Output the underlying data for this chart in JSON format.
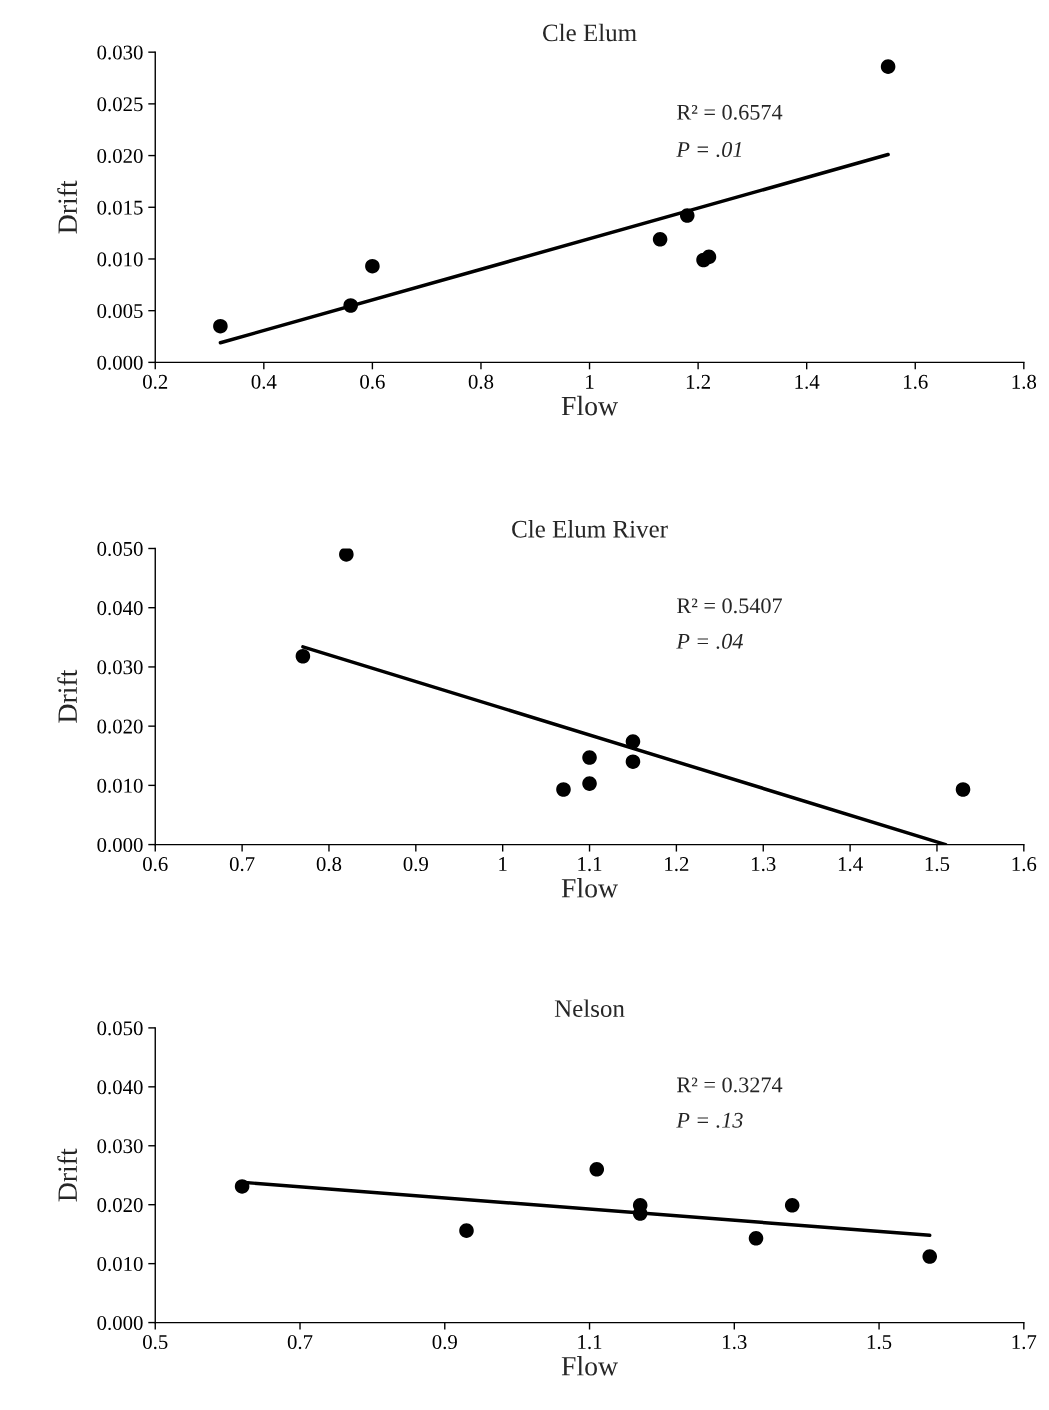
{
  "chart_data": [
    {
      "type": "scatter",
      "title": "Cle Elum",
      "xlabel": "Flow",
      "ylabel": "Drift",
      "annotations": [
        "R² = 0.6574",
        "P = .01"
      ],
      "series": [
        {
          "marker": "circle",
          "color": "#000000",
          "x": [
            0.32,
            0.56,
            0.6,
            1.13,
            1.18,
            1.21,
            1.22,
            1.55
          ],
          "values": [
            0.0035,
            0.0055,
            0.0093,
            0.0119,
            0.0142,
            0.0099,
            0.0102,
            0.0286
          ]
        },
        {
          "type": "line",
          "color": "#000000",
          "x": [
            0.32,
            1.55
          ],
          "values": [
            0.0019,
            0.0201
          ],
          "marker": "none"
        }
      ],
      "xlim": [
        0.2,
        1.8
      ],
      "xticks": [
        0.2,
        0.4,
        0.6,
        0.8,
        1,
        1.2,
        1.4,
        1.6,
        1.8
      ],
      "ylim": [
        0,
        0.03
      ],
      "yticks": [
        {
          "value": 0,
          "label": "0.000"
        },
        {
          "value": 0.005,
          "label": "0.005"
        },
        {
          "value": 0.01,
          "label": "0.010"
        },
        {
          "value": 0.015,
          "label": "0.015"
        },
        {
          "value": 0.02,
          "label": "0.020"
        },
        {
          "value": 0.025,
          "label": "0.025"
        },
        {
          "value": 0.03,
          "label": "0.030"
        }
      ],
      "grid": false,
      "legend": false
    },
    {
      "type": "scatter",
      "title": "Cle Elum River",
      "xlabel": "Flow",
      "ylabel": "Drift",
      "annotations": [
        "R² = 0.5407",
        "P = .04"
      ],
      "series": [
        {
          "marker": "circle",
          "color": "#000000",
          "x": [
            0.77,
            0.82,
            1.07,
            1.1,
            1.1,
            1.15,
            1.15,
            1.53
          ],
          "values": [
            0.0318,
            0.049,
            0.0093,
            0.0103,
            0.0147,
            0.0174,
            0.014,
            0.0093
          ]
        },
        {
          "type": "line",
          "color": "#000000",
          "x": [
            0.77,
            1.51
          ],
          "values": [
            0.0334,
            0
          ],
          "marker": "none"
        }
      ],
      "xlim": [
        0.6,
        1.6
      ],
      "xticks": [
        0.6,
        0.7,
        0.8,
        0.9,
        1,
        1.1,
        1.2,
        1.3,
        1.4,
        1.5,
        1.6
      ],
      "ylim": [
        0,
        0.05
      ],
      "yticks": [
        {
          "value": 0,
          "label": "0.000"
        },
        {
          "value": 0.01,
          "label": "0.010"
        },
        {
          "value": 0.02,
          "label": "0.020"
        },
        {
          "value": 0.03,
          "label": "0.030"
        },
        {
          "value": 0.04,
          "label": "0.040"
        },
        {
          "value": 0.05,
          "label": "0.050"
        }
      ],
      "grid": false,
      "legend": false
    },
    {
      "type": "scatter",
      "title": "Nelson",
      "xlabel": "Flow",
      "ylabel": "Drift",
      "annotations": [
        "R² = 0.3274",
        "P = .13"
      ],
      "series": [
        {
          "marker": "circle",
          "color": "#000000",
          "x": [
            0.62,
            0.93,
            1.11,
            1.17,
            1.17,
            1.33,
            1.38,
            1.57
          ],
          "values": [
            0.0231,
            0.0156,
            0.026,
            0.0199,
            0.0185,
            0.0143,
            0.0199,
            0.0112
          ]
        },
        {
          "type": "line",
          "color": "#000000",
          "x": [
            0.62,
            1.57
          ],
          "values": [
            0.0238,
            0.0148
          ],
          "marker": "none"
        }
      ],
      "xlim": [
        0.5,
        1.7
      ],
      "xticks": [
        0.5,
        0.7,
        0.9,
        1.1,
        1.3,
        1.5,
        1.7
      ],
      "ylim": [
        0,
        0.05
      ],
      "yticks": [
        {
          "value": 0,
          "label": "0.000"
        },
        {
          "value": 0.01,
          "label": "0.010"
        },
        {
          "value": 0.02,
          "label": "0.020"
        },
        {
          "value": 0.03,
          "label": "0.030"
        },
        {
          "value": 0.04,
          "label": "0.040"
        },
        {
          "value": 0.05,
          "label": "0.050"
        }
      ],
      "grid": false,
      "legend": false
    }
  ]
}
